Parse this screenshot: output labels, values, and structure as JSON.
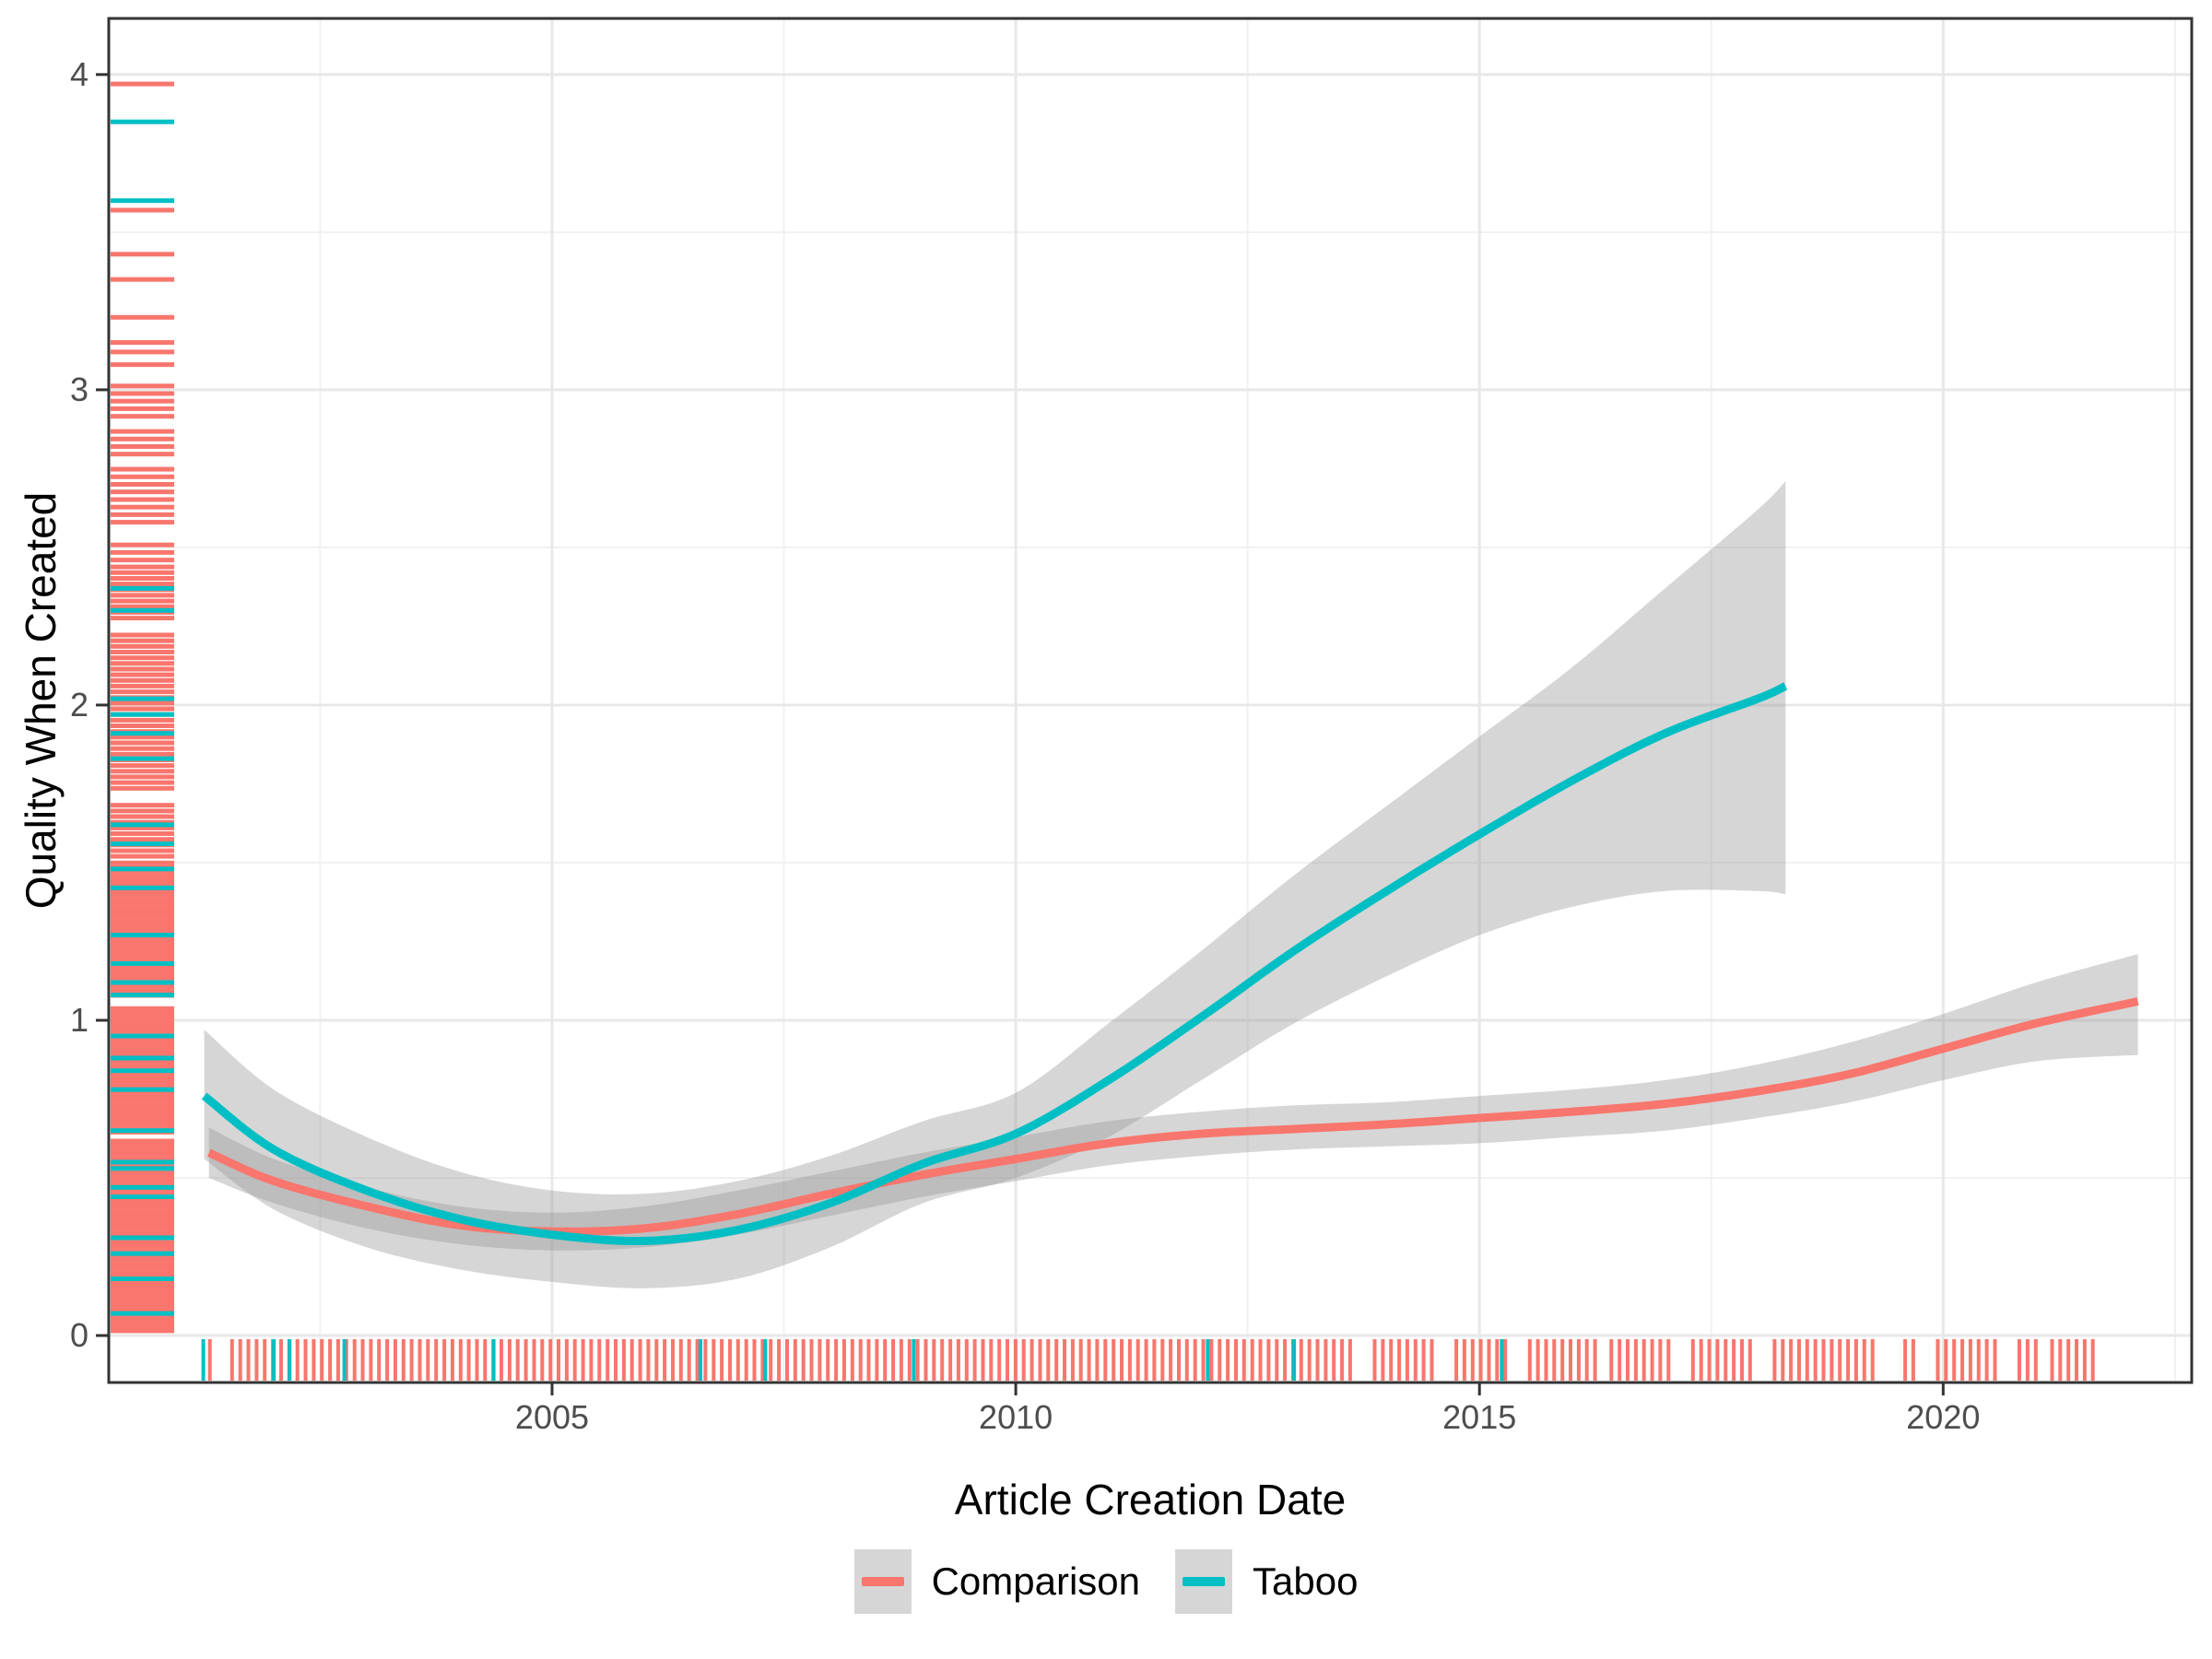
{
  "chart_data": {
    "type": "line",
    "subtype": "smoothed-trend-with-confidence-ribbons-and-rugs",
    "title": "",
    "xlabel": "Article Creation Date",
    "ylabel": "Quality When Created",
    "xlim": [
      2000.22,
      2022.68
    ],
    "ylim": [
      -0.149,
      4.178
    ],
    "x_ticks": {
      "values": [
        2005,
        2010,
        2015,
        2020
      ],
      "labels": [
        "2005",
        "2010",
        "2015",
        "2020"
      ]
    },
    "y_ticks": {
      "values": [
        0,
        1,
        2,
        3,
        4
      ],
      "labels": [
        "0",
        "1",
        "2",
        "3",
        "4"
      ]
    },
    "x_minor_gridlines": [
      2002.5,
      2007.5,
      2012.5,
      2017.5,
      2022.5
    ],
    "y_minor_gridlines": [
      0.5,
      1.5,
      2.5,
      3.5
    ],
    "grid": "on",
    "legend_position": "bottom-center",
    "colors": {
      "comparison": "#F8766D",
      "taboo": "#00BFC4",
      "ribbon_fill": "rgba(153,153,153,0.4)",
      "grid_major": "#E8E8E8",
      "grid_minor": "#F1F1F1",
      "panel_border": "#333333",
      "tick_mark": "#333333",
      "tick_label": "#4D4D4D"
    },
    "series": [
      {
        "name": "Comparison",
        "color_key": "comparison",
        "line": [
          [
            2001.3,
            0.58
          ],
          [
            2002,
            0.49
          ],
          [
            2003,
            0.41
          ],
          [
            2004,
            0.35
          ],
          [
            2005,
            0.33
          ],
          [
            2006,
            0.34
          ],
          [
            2007,
            0.385
          ],
          [
            2008,
            0.45
          ],
          [
            2009,
            0.51
          ],
          [
            2010,
            0.56
          ],
          [
            2011,
            0.61
          ],
          [
            2012,
            0.64
          ],
          [
            2013,
            0.655
          ],
          [
            2014,
            0.67
          ],
          [
            2015,
            0.69
          ],
          [
            2016,
            0.71
          ],
          [
            2017,
            0.735
          ],
          [
            2018,
            0.775
          ],
          [
            2019,
            0.83
          ],
          [
            2020,
            0.91
          ],
          [
            2021,
            0.99
          ],
          [
            2022.1,
            1.06
          ]
        ],
        "band": [
          [
            2001.3,
            0.5,
            0.66
          ],
          [
            2002,
            0.42,
            0.56
          ],
          [
            2003,
            0.34,
            0.47
          ],
          [
            2004,
            0.29,
            0.41
          ],
          [
            2005,
            0.27,
            0.39
          ],
          [
            2006,
            0.28,
            0.41
          ],
          [
            2007,
            0.32,
            0.46
          ],
          [
            2008,
            0.38,
            0.52
          ],
          [
            2009,
            0.44,
            0.58
          ],
          [
            2010,
            0.49,
            0.63
          ],
          [
            2011,
            0.54,
            0.68
          ],
          [
            2012,
            0.57,
            0.71
          ],
          [
            2013,
            0.59,
            0.73
          ],
          [
            2014,
            0.6,
            0.74
          ],
          [
            2015,
            0.61,
            0.76
          ],
          [
            2016,
            0.63,
            0.78
          ],
          [
            2017,
            0.65,
            0.81
          ],
          [
            2018,
            0.69,
            0.86
          ],
          [
            2019,
            0.74,
            0.93
          ],
          [
            2020,
            0.81,
            1.02
          ],
          [
            2021,
            0.87,
            1.12
          ],
          [
            2022.1,
            0.89,
            1.21
          ]
        ]
      },
      {
        "name": "Taboo",
        "color_key": "taboo",
        "line": [
          [
            2001.25,
            0.76
          ],
          [
            2002,
            0.59
          ],
          [
            2003,
            0.46
          ],
          [
            2004,
            0.37
          ],
          [
            2005,
            0.32
          ],
          [
            2006,
            0.3
          ],
          [
            2007,
            0.335
          ],
          [
            2008,
            0.42
          ],
          [
            2009,
            0.545
          ],
          [
            2010,
            0.64
          ],
          [
            2011,
            0.81
          ],
          [
            2012,
            1.01
          ],
          [
            2013,
            1.22
          ],
          [
            2014,
            1.41
          ],
          [
            2015,
            1.59
          ],
          [
            2016,
            1.76
          ],
          [
            2017,
            1.91
          ],
          [
            2018,
            2.02
          ],
          [
            2018.3,
            2.06
          ]
        ],
        "band": [
          [
            2001.25,
            0.56,
            0.97
          ],
          [
            2002,
            0.4,
            0.78
          ],
          [
            2003,
            0.28,
            0.63
          ],
          [
            2004,
            0.21,
            0.52
          ],
          [
            2005,
            0.17,
            0.46
          ],
          [
            2006,
            0.15,
            0.45
          ],
          [
            2007,
            0.18,
            0.49
          ],
          [
            2008,
            0.28,
            0.57
          ],
          [
            2009,
            0.42,
            0.68
          ],
          [
            2010,
            0.5,
            0.77
          ],
          [
            2011,
            0.63,
            0.99
          ],
          [
            2012,
            0.81,
            1.22
          ],
          [
            2013,
            0.99,
            1.46
          ],
          [
            2014,
            1.14,
            1.68
          ],
          [
            2015,
            1.27,
            1.9
          ],
          [
            2016,
            1.36,
            2.12
          ],
          [
            2017,
            1.41,
            2.37
          ],
          [
            2018,
            1.41,
            2.62
          ],
          [
            2018.3,
            1.4,
            2.71
          ]
        ]
      }
    ],
    "rug_left": {
      "comparison": {
        "singles": [
          3.97,
          3.57,
          3.43,
          3.35,
          3.23,
          3.15,
          3.12,
          3.08
        ],
        "segments": [
          {
            "from": 2.46,
            "to": 3.03,
            "step": 0.024,
            "gaps": [
              [
                2.53,
                2.56
              ],
              [
                2.75,
                2.78
              ],
              [
                2.88,
                2.905
              ]
            ]
          },
          {
            "from": 1.52,
            "to": 2.45,
            "step": 0.018,
            "gaps": [
              [
                1.7,
                1.73
              ],
              [
                2.23,
                2.26
              ]
            ]
          },
          {
            "from": 0.015,
            "to": 1.51,
            "step": 0.014,
            "gaps": [
              [
                0.62,
                0.64
              ],
              [
                1.05,
                1.07
              ]
            ]
          }
        ]
      },
      "taboo": {
        "singles": [
          3.85,
          3.6,
          2.37,
          2.3,
          2.02,
          1.97,
          1.91,
          1.83,
          1.62,
          1.56,
          1.48,
          1.42,
          1.27,
          1.18,
          1.12,
          1.08,
          0.95,
          0.88,
          0.84,
          0.78,
          0.65,
          0.55,
          0.53,
          0.47,
          0.44,
          0.31,
          0.26,
          0.18,
          0.07
        ],
        "segments": []
      }
    },
    "rug_bottom": {
      "comparison": {
        "singles": [
          2001.31
        ],
        "segments": [
          {
            "from": 2001.55,
            "to": 2021.67,
            "step": 0.088,
            "gaps": [
              [
                2013.66,
                2013.86
              ],
              [
                2014.5,
                2014.68
              ],
              [
                2015.3,
                2015.52
              ],
              [
                2016.28,
                2016.4
              ],
              [
                2017.12,
                2017.3
              ],
              [
                2017.93,
                2018.1
              ],
              [
                2019.28,
                2019.54
              ],
              [
                2019.7,
                2019.92
              ],
              [
                2020.56,
                2020.78
              ],
              [
                2021.05,
                2021.15
              ]
            ]
          }
        ]
      },
      "taboo": {
        "singles": [
          2001.24,
          2002.0,
          2002.17,
          2002.76,
          2004.37,
          2006.6,
          2007.3,
          2008.9,
          2012.07,
          2013.0,
          2015.24
        ],
        "segments": []
      }
    }
  },
  "axes": {
    "x": {
      "title": "Article Creation Date"
    },
    "y": {
      "title": "Quality When Created"
    }
  },
  "legend": {
    "items": [
      {
        "label": "Comparison",
        "color": "#F8766D"
      },
      {
        "label": "Taboo",
        "color": "#00BFC4"
      }
    ],
    "key_fill": "#D6D6D6"
  }
}
